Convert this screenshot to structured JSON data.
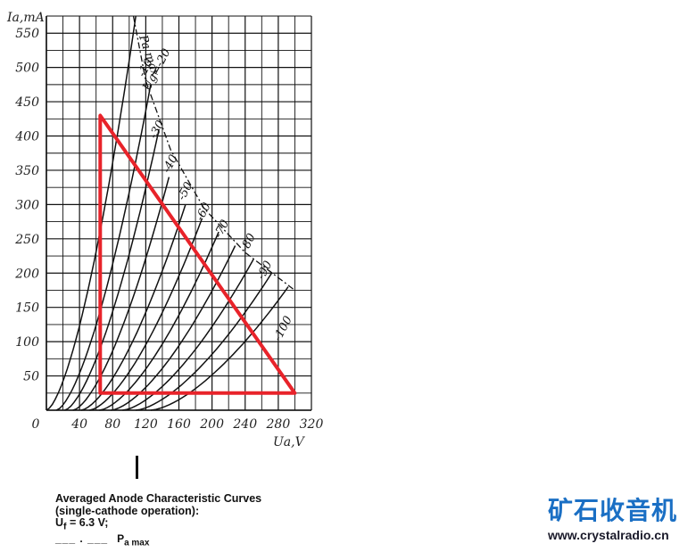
{
  "chart_data": {
    "type": "line",
    "ylabel": "Ia,mA",
    "xlabel": "Ua,V",
    "xlim": [
      0,
      320
    ],
    "ylim": [
      0,
      575
    ],
    "x_ticks": [
      "0",
      "40",
      "80",
      "120",
      "160",
      "200",
      "240",
      "280",
      "320"
    ],
    "y_ticks": [
      "50",
      "100",
      "150",
      "200",
      "250",
      "300",
      "350",
      "400",
      "450",
      "500",
      "550"
    ],
    "grid": true,
    "series_note": "Pa max",
    "grid_labels": [
      "Ug=-20",
      "-10",
      "-30",
      "-40",
      "-50",
      "-60",
      "-70",
      "-80",
      "-90",
      "-100"
    ],
    "pmax_label": "Pa max",
    "curves": [
      {
        "label": "",
        "start": 0,
        "end": [
          108,
          575
        ]
      },
      {
        "label": "-10",
        "start": 12,
        "end": [
          126,
          475
        ]
      },
      {
        "label": "Ug=-20",
        "start": 22,
        "end": [
          136,
          410
        ]
      },
      {
        "label": "-30",
        "start": 32,
        "end": [
          148,
          340
        ]
      },
      {
        "label": "-40",
        "start": 42,
        "end": [
          168,
          300
        ]
      },
      {
        "label": "-50",
        "start": 52,
        "end": [
          188,
          280
        ]
      },
      {
        "label": "-60",
        "start": 64,
        "end": [
          208,
          260
        ]
      },
      {
        "label": "-70",
        "start": 78,
        "end": [
          228,
          240
        ]
      },
      {
        "label": "-80",
        "start": 92,
        "end": [
          250,
          220
        ]
      },
      {
        "label": "-90",
        "start": 108,
        "end": [
          272,
          200
        ]
      },
      {
        "label": "-100",
        "start": 126,
        "end": [
          292,
          180
        ]
      }
    ],
    "pmax_curve": [
      [
        105,
        575
      ],
      [
        120,
        480
      ],
      [
        150,
        380
      ],
      [
        190,
        295
      ],
      [
        240,
        230
      ],
      [
        300,
        175
      ]
    ],
    "overlay_triangle": {
      "color": "#e8232a",
      "points": [
        [
          65,
          430
        ],
        [
          65,
          25
        ],
        [
          300,
          25
        ]
      ]
    }
  },
  "caption": {
    "title": "Averaged Anode Characteristic Curves",
    "subtitle": "(single-cathode operation):",
    "uf_label": "U",
    "uf_sub": "f",
    "uf_value": " = 6.3 V;",
    "legend_dash": "___ . ___",
    "legend_label": "P",
    "legend_sub": "a max"
  },
  "brand": {
    "name": "矿石收音机",
    "url": "www.crystalradio.cn"
  }
}
